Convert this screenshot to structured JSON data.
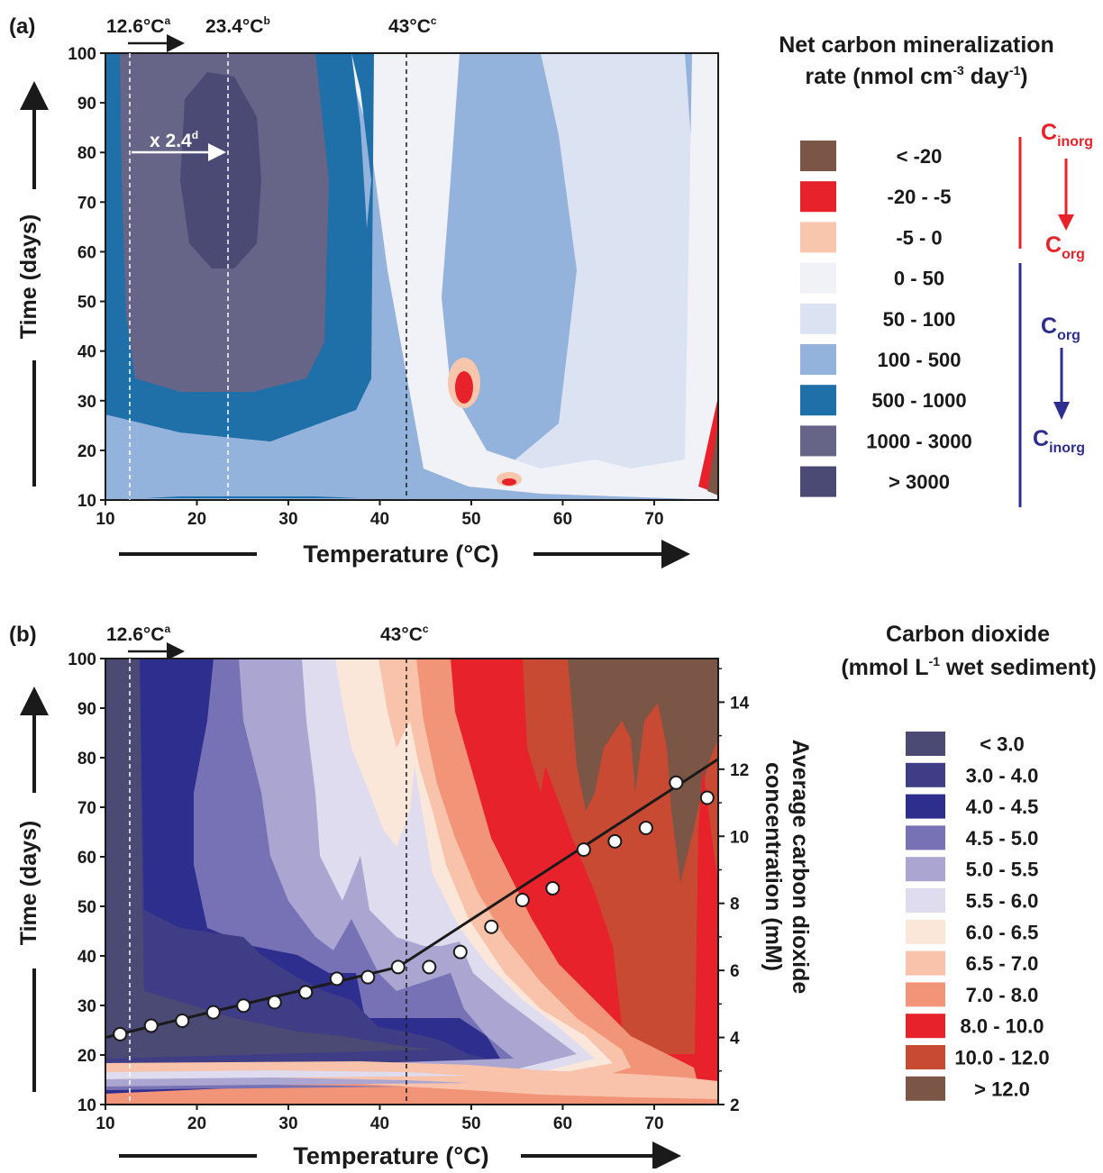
{
  "chart_data": [
    {
      "panel_label": "(a)",
      "type": "heatmap",
      "xlabel": "Temperature (°C)",
      "ylabel": "Time (days)",
      "xlim": [
        10,
        77
      ],
      "ylim": [
        10,
        100
      ],
      "xticks": [
        10,
        20,
        30,
        40,
        50,
        60,
        70
      ],
      "yticks": [
        10,
        20,
        30,
        40,
        50,
        60,
        70,
        80,
        90,
        100
      ],
      "legend_title_line1": "Net carbon mineralization",
      "legend_title_line2": "rate (nmol cm",
      "legend_title_sup1": "-3",
      "legend_title_mid": " day",
      "legend_title_sup2": "-1",
      "legend_title_end": ")",
      "legend": [
        {
          "label": "< -20",
          "color": "#7b5646"
        },
        {
          "label": "-20 - -5",
          "color": "#e8222a"
        },
        {
          "label": "-5 - 0",
          "color": "#f7c6ac"
        },
        {
          "label": "0 - 50",
          "color": "#f1f1f8"
        },
        {
          "label": "50 - 100",
          "color": "#dbe3f2"
        },
        {
          "label": "100 - 500",
          "color": "#94b3dc"
        },
        {
          "label": "500 - 1000",
          "color": "#1f6fa8"
        },
        {
          "label": "1000 - 3000",
          "color": "#666487"
        },
        {
          "label": "> 3000",
          "color": "#4b4a75"
        }
      ],
      "annotations": [
        {
          "text": "12.6°C",
          "sup": "a",
          "x": 12.6
        },
        {
          "text": "23.4°C",
          "sup": "b",
          "x": 23.4
        },
        {
          "text": "43°C",
          "sup": "c",
          "x": 43
        },
        {
          "text": "x 2.4",
          "sup": "d"
        }
      ],
      "side_label_top_main": "C",
      "side_label_top_sub": "inorg",
      "side_label_top_to_main": "C",
      "side_label_top_to_sub": "org",
      "side_label_bottom_main": "C",
      "side_label_bottom_sub": "org",
      "side_label_bottom_to_main": "C",
      "side_label_bottom_to_sub": "inorg"
    },
    {
      "panel_label": "(b)",
      "type": "heatmap",
      "xlabel": "Temperature (°C)",
      "ylabel": "Time (days)",
      "y2label_line1": "Average carbon dioxide",
      "y2label_line2": "concentration (mM)",
      "xlim": [
        10,
        77
      ],
      "ylim": [
        10,
        100
      ],
      "y2lim": [
        2,
        15.3
      ],
      "xticks": [
        10,
        20,
        30,
        40,
        50,
        60,
        70
      ],
      "yticks": [
        10,
        20,
        30,
        40,
        50,
        60,
        70,
        80,
        90,
        100
      ],
      "y2ticks": [
        2,
        4,
        6,
        8,
        10,
        12,
        14
      ],
      "legend_title_line1": "Carbon dioxide",
      "legend_title_line2": "(mmol L",
      "legend_title_sup": "-1",
      "legend_title_end": " wet sediment)",
      "legend": [
        {
          "label": "< 3.0",
          "color": "#4b4a75"
        },
        {
          "label": "3.0 - 4.0",
          "color": "#3e3d85"
        },
        {
          "label": "4.0 - 4.5",
          "color": "#2e2e8e"
        },
        {
          "label": "4.5 - 5.0",
          "color": "#7672b5"
        },
        {
          "label": "5.0 - 5.5",
          "color": "#aaa6d1"
        },
        {
          "label": "5.5 - 6.0",
          "color": "#dedcee"
        },
        {
          "label": "6.0 - 6.5",
          "color": "#fbe6da"
        },
        {
          "label": "6.5 - 7.0",
          "color": "#f8c3aa"
        },
        {
          "label": "7.0 - 8.0",
          "color": "#f29478"
        },
        {
          "label": "8.0 - 10.0",
          "color": "#e8222a"
        },
        {
          "label": "10.0 - 12.0",
          "color": "#c84a32"
        },
        {
          "label": "> 12.0",
          "color": "#7b5646"
        }
      ],
      "annotations": [
        {
          "text": "12.6°C",
          "sup": "a",
          "x": 12.6
        },
        {
          "text": "43°C",
          "sup": "c",
          "x": 43
        }
      ],
      "series": [
        {
          "x": [
            11.6,
            15.0,
            18.4,
            21.8,
            25.1,
            28.5,
            31.9,
            35.3,
            38.7,
            42.0,
            45.4,
            48.8,
            52.2,
            55.6,
            58.9,
            62.3,
            65.7,
            69.1,
            72.4,
            75.8
          ],
          "y": [
            4.1,
            4.35,
            4.5,
            4.75,
            4.95,
            5.05,
            5.35,
            5.75,
            5.8,
            6.1,
            6.1,
            6.55,
            7.3,
            8.1,
            8.45,
            9.6,
            9.85,
            10.25,
            11.6,
            11.15
          ]
        }
      ],
      "trend_line": {
        "x": [
          10,
          42,
          77
        ],
        "y": [
          4.0,
          6.1,
          12.3
        ]
      }
    }
  ]
}
